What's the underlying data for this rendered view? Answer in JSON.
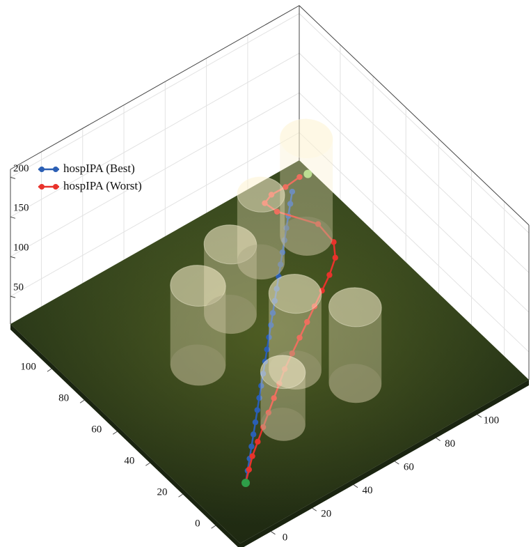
{
  "chart_data": {
    "type": "line3d",
    "series": [
      {
        "name": "hospIPA (Best)",
        "color": "#2b5fb4",
        "x": [
          6,
          10.2,
          14.4,
          18.6,
          22.8,
          27,
          31.2,
          35.4,
          39.6,
          43.8,
          48,
          52.2,
          56.4,
          60.6,
          64.8,
          69,
          73.2,
          77.4,
          81.6,
          85.8,
          90,
          94.2,
          98.4,
          102.6,
          106.8
        ],
        "y": [
          8,
          12.1,
          16.2,
          20.3,
          24.4,
          28.5,
          32.6,
          36.7,
          40.8,
          44.9,
          49,
          53.1,
          57.2,
          61.3,
          65.4,
          69.5,
          73.6,
          77.7,
          81.8,
          85.9,
          90,
          94.1,
          98.2,
          102.3,
          106.4
        ],
        "z": [
          15,
          16,
          17,
          18,
          19,
          20,
          21,
          22,
          23,
          24,
          25,
          26,
          27,
          28,
          29,
          30,
          31,
          32,
          33,
          34,
          35,
          36,
          37,
          38,
          39
        ]
      },
      {
        "name": "hospIPA (Worst)",
        "color": "#e8322b",
        "x": [
          6,
          10,
          14,
          19,
          24,
          29,
          34,
          39,
          44,
          50,
          56,
          62,
          68,
          74,
          80,
          86,
          90,
          92,
          88,
          90,
          98,
          108,
          118
        ],
        "y": [
          8,
          11,
          14,
          17,
          20,
          23,
          26,
          29,
          32,
          35,
          38,
          41,
          44,
          47,
          50,
          54,
          60,
          72,
          92,
          102,
          108,
          112,
          116
        ],
        "z": [
          15,
          20,
          25,
          30,
          35,
          40,
          45,
          50,
          55,
          60,
          65,
          70,
          75,
          80,
          85,
          90,
          92,
          88,
          70,
          58,
          45,
          32,
          22
        ]
      }
    ],
    "markers": {
      "x": [
        6,
        122
      ],
      "y": [
        8,
        116
      ],
      "z": [
        15,
        20
      ],
      "colors": [
        "#2e9e48",
        "#9ed67a"
      ]
    },
    "obstacles": {
      "x": [
        29,
        55,
        81,
        103,
        57,
        71,
        36
      ],
      "y": [
        66,
        79,
        93,
        93,
        42,
        23,
        23
      ],
      "radius": [
        10.5,
        10,
        9,
        10,
        10,
        10,
        8.5
      ],
      "top": [
        115,
        103,
        100,
        138,
        111,
        111,
        81
      ]
    },
    "xlim": [
      -15,
      125
    ],
    "ylim": [
      -15,
      125
    ],
    "zlim": [
      15,
      210
    ],
    "xticks": [
      0,
      20,
      40,
      60,
      80,
      100
    ],
    "yticks": [
      0,
      20,
      40,
      60,
      80,
      100
    ],
    "zticks": [
      50,
      100,
      150,
      200
    ],
    "grid": true,
    "legend": "upper-left"
  }
}
